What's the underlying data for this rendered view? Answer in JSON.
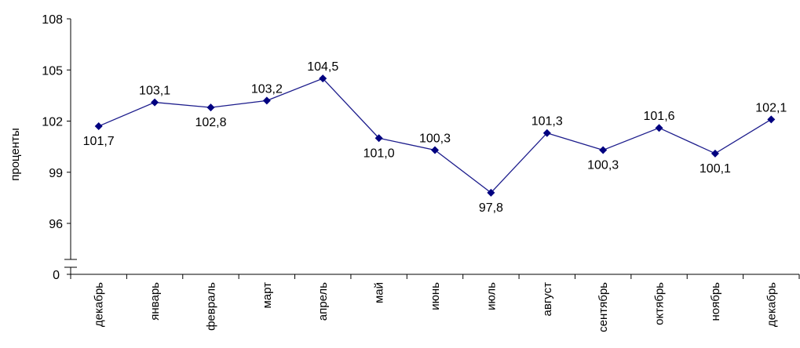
{
  "chart_data": {
    "type": "line",
    "categories": [
      "декабрь",
      "январь",
      "февраль",
      "март",
      "апрель",
      "май",
      "июнь",
      "июль",
      "август",
      "сентябрь",
      "октябрь",
      "ноябрь",
      "декабрь"
    ],
    "values": [
      101.7,
      103.1,
      102.8,
      103.2,
      104.5,
      101.0,
      100.3,
      97.8,
      101.3,
      100.3,
      101.6,
      100.1,
      102.1
    ],
    "data_labels": [
      "101,7",
      "103,1",
      "102,8",
      "103,2",
      "104,5",
      "101,0",
      "100,3",
      "97,8",
      "101,3",
      "100,3",
      "101,6",
      "100,1",
      "102,1"
    ],
    "title": "",
    "xlabel": "",
    "ylabel": "проценты",
    "ylim": [
      96,
      108
    ],
    "yticks": [
      96,
      99,
      102,
      105,
      108
    ],
    "y_break": true,
    "y_break_bottom": 0,
    "grid": false,
    "legend": "none",
    "line_color": "#1c1c8c",
    "marker_color": "#000080",
    "marker": "diamond"
  }
}
